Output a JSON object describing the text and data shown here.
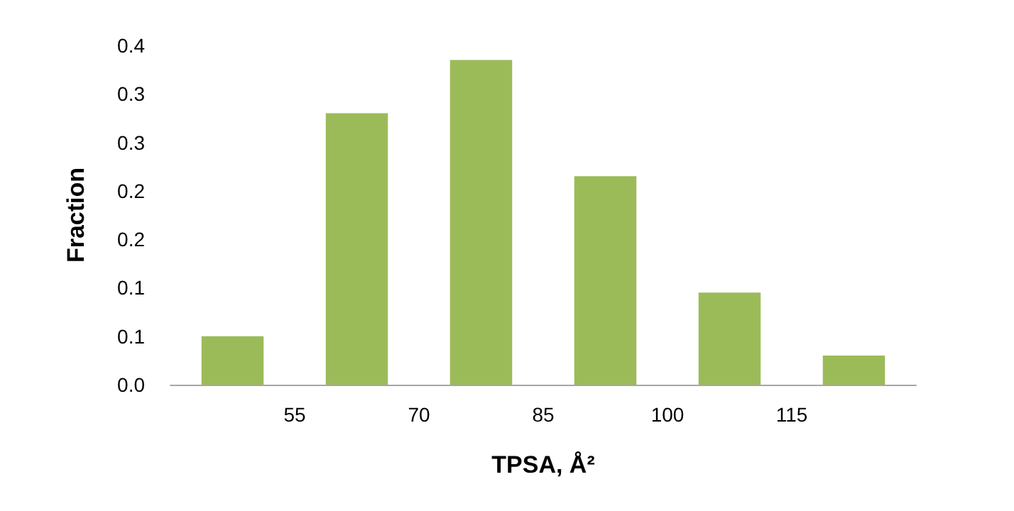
{
  "chart_data": {
    "type": "histogram",
    "xlabel": "TPSA, Å²",
    "ylabel": "Fraction",
    "bins": [
      40,
      55,
      70,
      85,
      100,
      115,
      130
    ],
    "values": [
      0.05,
      0.28,
      0.335,
      0.215,
      0.095,
      0.03
    ],
    "color": "#9bbb59",
    "xlim": [
      40,
      130
    ],
    "xticks": [
      55,
      70,
      85,
      100,
      115
    ],
    "ylim": [
      0,
      0.35
    ],
    "yticks": [
      {
        "value": 0,
        "label": "0.0"
      },
      {
        "value": 0.05,
        "label": "0.1"
      },
      {
        "value": 0.1,
        "label": "0.1"
      },
      {
        "value": 0.15,
        "label": "0.2"
      },
      {
        "value": 0.2,
        "label": "0.2"
      },
      {
        "value": 0.25,
        "label": "0.3"
      },
      {
        "value": 0.3,
        "label": "0.3"
      },
      {
        "value": 0.35,
        "label": "0.4"
      }
    ],
    "grid": false
  }
}
